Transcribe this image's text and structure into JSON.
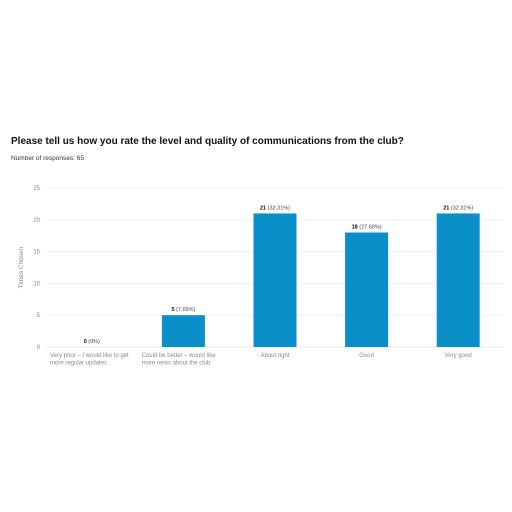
{
  "chart_data": {
    "type": "bar",
    "title": "Please tell us how you rate the level and quality of communications from the club?",
    "subtitle": "Number of responses: 65",
    "ylabel": "Times Chosen",
    "xlabel": "",
    "ylim": [
      0,
      25
    ],
    "yticks": [
      "0",
      "5",
      "10",
      "15",
      "20",
      "25"
    ],
    "grid": true,
    "categories": [
      [
        "Very poor – I would like to get",
        "more regular updates"
      ],
      [
        "Could be better – would like",
        "more news about the club"
      ],
      [
        "About right"
      ],
      [
        "Good"
      ],
      [
        "Very good"
      ]
    ],
    "values": [
      0,
      5,
      21,
      18,
      21
    ],
    "percent_labels": [
      "(0%)",
      "(7.69%)",
      "(32.31%)",
      "(27.69%)",
      "(32.31%)"
    ],
    "bar_color": "#0a8fc8"
  }
}
